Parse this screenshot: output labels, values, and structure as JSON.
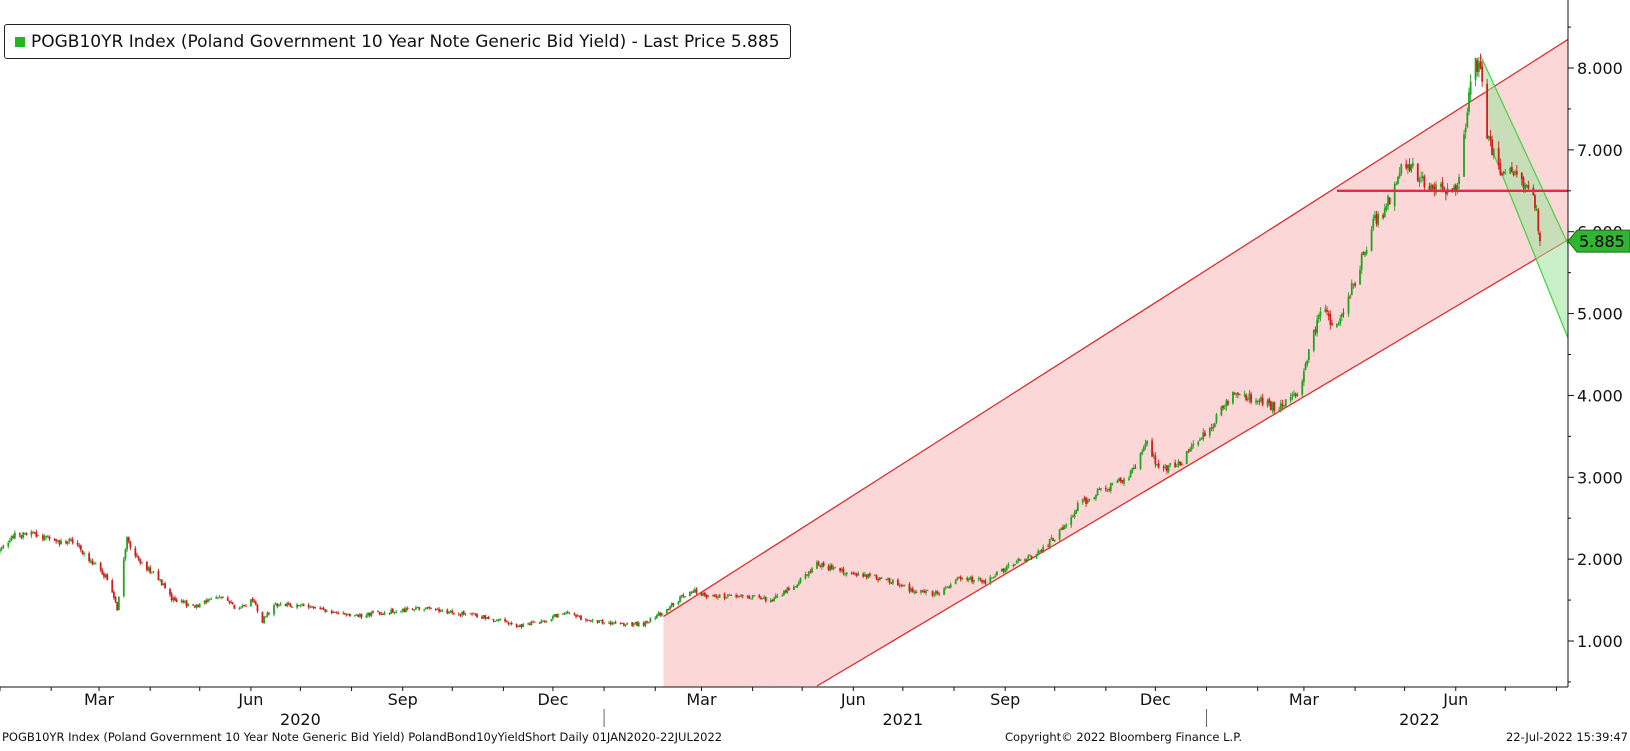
{
  "colors": {
    "up_candle": "#1fa51f",
    "down_candle": "#d41a1a",
    "channel_fill": "#f9c8c8",
    "channel_line": "#e02020",
    "hline": "#e8284a",
    "down_channel_fill": "#9fe39f",
    "down_channel_line": "#44d044",
    "price_tag": "#2fb52f",
    "axis": "#111111"
  },
  "legend": {
    "label": "POGB10YR Index (Poland Government 10 Year Note Generic Bid Yield) - Last Price 5.885"
  },
  "footer": {
    "left": "POGB10YR Index (Poland Government 10 Year Note Generic Bid Yield) PolandBond10yYieldShort  Daily 01JAN2020-22JUL2022",
    "center": "Copyright© 2022 Bloomberg Finance L.P.",
    "right": "22-Jul-2022 15:39:47"
  },
  "chart_data": {
    "type": "candlestick",
    "ticker": "POGB10YR Index",
    "frequency": "Daily",
    "date_range": [
      "2020-01-01",
      "2022-07-22"
    ],
    "last_price": 5.885,
    "last_price_label": "5.885",
    "ylim": [
      0.45,
      8.85
    ],
    "y_ticks": [
      {
        "value": 1.0,
        "label": "1.000"
      },
      {
        "value": 2.0,
        "label": "2.000"
      },
      {
        "value": 3.0,
        "label": "3.000"
      },
      {
        "value": 4.0,
        "label": "4.000"
      },
      {
        "value": 5.0,
        "label": "5.000"
      },
      {
        "value": 6.0,
        "label": "6.000"
      },
      {
        "value": 7.0,
        "label": "7.000"
      },
      {
        "value": 8.0,
        "label": "8.000"
      }
    ],
    "x_ticks": [
      {
        "date": "2020-03-01",
        "label": "Mar"
      },
      {
        "date": "2020-06-01",
        "label": "Jun"
      },
      {
        "date": "2020-09-01",
        "label": "Sep"
      },
      {
        "date": "2020-12-01",
        "label": "Dec"
      },
      {
        "date": "2021-03-01",
        "label": "Mar"
      },
      {
        "date": "2021-06-01",
        "label": "Jun"
      },
      {
        "date": "2021-09-01",
        "label": "Sep"
      },
      {
        "date": "2021-12-01",
        "label": "Dec"
      },
      {
        "date": "2022-03-01",
        "label": "Mar"
      },
      {
        "date": "2022-06-01",
        "label": "Jun"
      }
    ],
    "year_labels": [
      {
        "date": "2020-07-01",
        "label": "2020"
      },
      {
        "date": "2021-07-01",
        "label": "2021"
      },
      {
        "date": "2022-05-10",
        "label": "2022"
      }
    ],
    "year_separators": [
      "2021-01-01",
      "2022-01-01"
    ],
    "series_anchors": [
      [
        "2020-01-01",
        2.1
      ],
      [
        "2020-01-10",
        2.3
      ],
      [
        "2020-01-22",
        2.3
      ],
      [
        "2020-02-05",
        2.2
      ],
      [
        "2020-02-14",
        2.22
      ],
      [
        "2020-02-24",
        2.0
      ],
      [
        "2020-03-07",
        1.75
      ],
      [
        "2020-03-12",
        1.4
      ],
      [
        "2020-03-18",
        2.25
      ],
      [
        "2020-03-26",
        1.95
      ],
      [
        "2020-04-05",
        1.8
      ],
      [
        "2020-04-15",
        1.5
      ],
      [
        "2020-04-28",
        1.42
      ],
      [
        "2020-05-12",
        1.55
      ],
      [
        "2020-05-25",
        1.38
      ],
      [
        "2020-06-02",
        1.5
      ],
      [
        "2020-06-08",
        1.25
      ],
      [
        "2020-06-16",
        1.45
      ],
      [
        "2020-07-05",
        1.42
      ],
      [
        "2020-08-01",
        1.3
      ],
      [
        "2020-08-20",
        1.35
      ],
      [
        "2020-09-10",
        1.4
      ],
      [
        "2020-10-01",
        1.35
      ],
      [
        "2020-10-25",
        1.28
      ],
      [
        "2020-11-10",
        1.18
      ],
      [
        "2020-11-25",
        1.25
      ],
      [
        "2020-12-08",
        1.35
      ],
      [
        "2020-12-22",
        1.25
      ],
      [
        "2021-01-10",
        1.22
      ],
      [
        "2021-01-25",
        1.2
      ],
      [
        "2021-02-10",
        1.42
      ],
      [
        "2021-02-22",
        1.62
      ],
      [
        "2021-03-05",
        1.55
      ],
      [
        "2021-03-25",
        1.55
      ],
      [
        "2021-04-12",
        1.5
      ],
      [
        "2021-04-28",
        1.7
      ],
      [
        "2021-05-10",
        1.95
      ],
      [
        "2021-05-24",
        1.85
      ],
      [
        "2021-06-08",
        1.8
      ],
      [
        "2021-06-22",
        1.75
      ],
      [
        "2021-07-08",
        1.6
      ],
      [
        "2021-07-22",
        1.58
      ],
      [
        "2021-08-05",
        1.78
      ],
      [
        "2021-08-20",
        1.72
      ],
      [
        "2021-09-05",
        1.95
      ],
      [
        "2021-09-20",
        2.05
      ],
      [
        "2021-10-05",
        2.35
      ],
      [
        "2021-10-15",
        2.65
      ],
      [
        "2021-10-30",
        2.85
      ],
      [
        "2021-11-15",
        3.0
      ],
      [
        "2021-11-26",
        3.4
      ],
      [
        "2021-12-03",
        3.1
      ],
      [
        "2021-12-15",
        3.15
      ],
      [
        "2022-01-01",
        3.55
      ],
      [
        "2022-01-08",
        3.75
      ],
      [
        "2022-01-18",
        4.05
      ],
      [
        "2022-01-30",
        3.95
      ],
      [
        "2022-02-12",
        3.85
      ],
      [
        "2022-02-26",
        4.0
      ],
      [
        "2022-03-05",
        4.6
      ],
      [
        "2022-03-12",
        5.1
      ],
      [
        "2022-03-20",
        4.8
      ],
      [
        "2022-04-01",
        5.4
      ],
      [
        "2022-04-12",
        6.1
      ],
      [
        "2022-04-20",
        6.3
      ],
      [
        "2022-04-30",
        6.9
      ],
      [
        "2022-05-10",
        6.65
      ],
      [
        "2022-05-25",
        6.5
      ],
      [
        "2022-06-03",
        6.6
      ],
      [
        "2022-06-10",
        7.9
      ],
      [
        "2022-06-15",
        8.1
      ],
      [
        "2022-06-20",
        7.2
      ],
      [
        "2022-06-28",
        6.7
      ],
      [
        "2022-07-03",
        6.8
      ],
      [
        "2022-07-10",
        6.65
      ],
      [
        "2022-07-18",
        6.5
      ],
      [
        "2022-07-22",
        5.885
      ]
    ],
    "annotations": {
      "uptrend_channel": {
        "start_date": "2021-02-06",
        "upper": [
          [
            "2021-02-06",
            1.3
          ],
          [
            "2022-08-08",
            8.35
          ]
        ],
        "lower": [
          [
            "2021-05-10",
            0.45
          ],
          [
            "2022-08-08",
            5.9
          ]
        ]
      },
      "horizontal_line": {
        "value": 6.5,
        "from_date": "2022-03-21",
        "to_date": "2022-08-08"
      },
      "downtrend_channel": {
        "upper": [
          [
            "2022-06-16",
            8.15
          ],
          [
            "2022-08-08",
            5.85
          ]
        ],
        "lower": [
          [
            "2022-06-23",
            7.0
          ],
          [
            "2022-08-08",
            4.7
          ]
        ]
      }
    }
  }
}
